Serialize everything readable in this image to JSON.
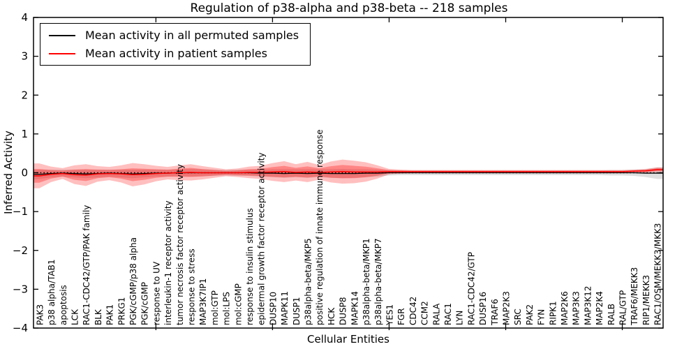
{
  "chart_data": {
    "type": "line",
    "title": "Regulation of p38-alpha and p38-beta -- 218 samples",
    "xlabel": "Cellular Entities",
    "ylabel": "Inferred Activity",
    "ylim": [
      -4,
      4
    ],
    "yticks": [
      4,
      3,
      2,
      1,
      0,
      -1,
      -2,
      -3,
      -4
    ],
    "yticklabels": [
      "4",
      "3",
      "2",
      "1",
      "0",
      "−1",
      "−2",
      "−3",
      "−4"
    ],
    "x_major_tick_indices": [
      10,
      20,
      30,
      40,
      50
    ],
    "grid": false,
    "legend_position": "upper-left",
    "legend": [
      {
        "label": "Mean activity in all permuted samples",
        "color": "#000000"
      },
      {
        "label": "Mean activity in patient samples",
        "color": "#ff0000"
      }
    ],
    "colors": {
      "patient_line": "#ff0000",
      "permuted_line": "#000000",
      "patient_band": "#ff0000",
      "permuted_band": "#8c8c8c",
      "zero_line": "#000000",
      "frame": "#000000"
    },
    "categories": [
      "PAK3",
      "p38 alpha/TAB1",
      "apoptosis",
      "LCK",
      "RAC1-CDC42/GTP/PAK family",
      "BLK",
      "PAK1",
      "PRKG1",
      "PGK/cGMP/p38 alpha",
      "PGK/cGMP",
      "response to UV",
      "interleukin-1 receptor activity",
      "tumor necrosis factor receptor activity",
      "response to stress",
      "MAP3K7IP1",
      "mol:GTP",
      "mol:LPS",
      "mol:cGMP",
      "response to insulin stimulus",
      "epidermal growth factor receptor activity",
      "DUSP10",
      "MAPK11",
      "DUSP1",
      "p38alpha-beta/MKP5",
      "positive regulation of innate immune response",
      "HCK",
      "DUSP8",
      "MAPK14",
      "p38alpha-beta/MKP1",
      "p38alpha-beta/MKP7",
      "YES1",
      "FGR",
      "CDC42",
      "CCM2",
      "RALA",
      "RAC1",
      "LYN",
      "RAC1-CDC42/GTP",
      "DUSP16",
      "TRAF6",
      "MAP2K3",
      "SRC",
      "PAK2",
      "FYN",
      "RIPK1",
      "MAP2K6",
      "MAP3K3",
      "MAP3K12",
      "MAP2K4",
      "RALB",
      "RAL/GTP",
      "TRAF6/MEKK3",
      "RIP1/MEKK3",
      "RAC1/OSM/MEKK3/MKK3"
    ],
    "series": [
      {
        "name": "Mean activity in all permuted samples",
        "color": "#000000",
        "values": [
          -0.04,
          -0.02,
          -0.01,
          -0.02,
          -0.03,
          -0.02,
          -0.01,
          -0.02,
          -0.03,
          -0.02,
          -0.01,
          -0.01,
          0.0,
          0.0,
          0.0,
          0.0,
          0.0,
          0.0,
          0.0,
          -0.01,
          -0.01,
          -0.02,
          -0.01,
          -0.02,
          -0.01,
          -0.02,
          -0.02,
          -0.02,
          -0.01,
          -0.01,
          0.0,
          0.0,
          0.0,
          0.0,
          0.0,
          0.0,
          0.0,
          0.0,
          0.0,
          0.0,
          0.0,
          0.0,
          0.0,
          0.0,
          0.0,
          0.0,
          0.0,
          0.0,
          0.0,
          0.0,
          0.0,
          0.0,
          -0.01,
          -0.01
        ]
      },
      {
        "name": "Mean activity in patient samples",
        "color": "#ff0000",
        "values": [
          -0.08,
          -0.04,
          -0.02,
          -0.05,
          -0.06,
          -0.03,
          -0.02,
          -0.03,
          -0.05,
          -0.04,
          -0.02,
          -0.01,
          0.0,
          0.01,
          0.0,
          0.0,
          0.0,
          0.0,
          0.01,
          0.01,
          0.02,
          0.03,
          0.01,
          0.02,
          0.01,
          0.02,
          0.03,
          0.02,
          0.02,
          0.02,
          0.03,
          0.03,
          0.03,
          0.03,
          0.03,
          0.03,
          0.03,
          0.03,
          0.03,
          0.03,
          0.03,
          0.03,
          0.03,
          0.03,
          0.03,
          0.03,
          0.03,
          0.03,
          0.03,
          0.03,
          0.03,
          0.04,
          0.05,
          0.08
        ]
      }
    ],
    "bands": [
      {
        "name": "permuted std band",
        "series": "Mean activity in all permuted samples",
        "half_widths": [
          0.12,
          0.1,
          0.09,
          0.1,
          0.11,
          0.1,
          0.09,
          0.1,
          0.11,
          0.1,
          0.09,
          0.09,
          0.09,
          0.1,
          0.09,
          0.08,
          0.07,
          0.08,
          0.08,
          0.09,
          0.1,
          0.11,
          0.1,
          0.11,
          0.1,
          0.11,
          0.12,
          0.11,
          0.1,
          0.09,
          0.07,
          0.06,
          0.06,
          0.06,
          0.06,
          0.06,
          0.06,
          0.06,
          0.06,
          0.06,
          0.06,
          0.06,
          0.06,
          0.06,
          0.06,
          0.06,
          0.06,
          0.06,
          0.06,
          0.07,
          0.07,
          0.08,
          0.1,
          0.15
        ]
      },
      {
        "name": "patient std band",
        "series": "Mean activity in patient samples",
        "half_widths": [
          0.32,
          0.2,
          0.14,
          0.24,
          0.28,
          0.2,
          0.17,
          0.22,
          0.3,
          0.26,
          0.2,
          0.16,
          0.19,
          0.21,
          0.17,
          0.13,
          0.09,
          0.11,
          0.15,
          0.17,
          0.23,
          0.27,
          0.21,
          0.26,
          0.19,
          0.27,
          0.31,
          0.29,
          0.25,
          0.17,
          0.07,
          0.05,
          0.04,
          0.04,
          0.04,
          0.04,
          0.04,
          0.04,
          0.04,
          0.04,
          0.04,
          0.04,
          0.04,
          0.04,
          0.04,
          0.04,
          0.04,
          0.04,
          0.04,
          0.04,
          0.04,
          0.04,
          0.05,
          0.06
        ]
      }
    ]
  }
}
